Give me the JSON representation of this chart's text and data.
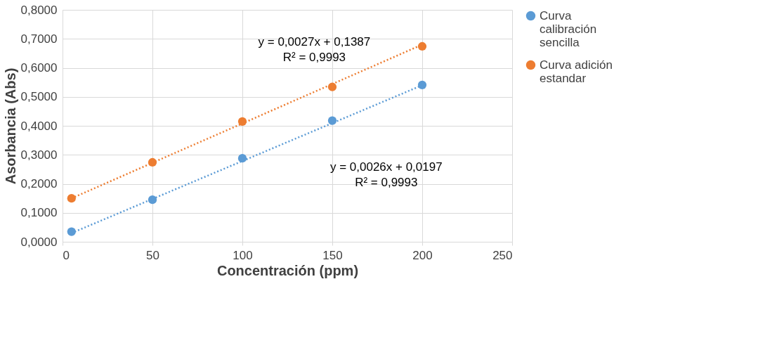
{
  "chart_data": {
    "type": "scatter",
    "xlabel": "Concentración (ppm)",
    "ylabel": "Asorbancia (Abs)",
    "xlim": [
      0,
      250
    ],
    "xticks": [
      0,
      50,
      100,
      150,
      200,
      250
    ],
    "ylim": [
      0,
      0.8
    ],
    "yticks": [
      {
        "value": 0,
        "label": "0,0000"
      },
      {
        "value": 0.1,
        "label": "0,1000"
      },
      {
        "value": 0.2,
        "label": "0,2000"
      },
      {
        "value": 0.3,
        "label": "0,3000"
      },
      {
        "value": 0.4,
        "label": "0,4000"
      },
      {
        "value": 0.5,
        "label": "0,5000"
      },
      {
        "value": 0.6,
        "label": "0,6000"
      },
      {
        "value": 0.7,
        "label": "0,7000"
      },
      {
        "value": 0.8,
        "label": "0,8000"
      }
    ],
    "grid": true,
    "legend": "right",
    "series": [
      {
        "name": "Curva calibración sencilla",
        "color": "#5b9bd5",
        "marker": "circle",
        "x": [
          5,
          50,
          100,
          150,
          200
        ],
        "values": [
          0.035,
          0.145,
          0.288,
          0.418,
          0.541
        ]
      },
      {
        "name": "Curva adición estandar",
        "color": "#ed7d31",
        "marker": "circle",
        "x": [
          5,
          50,
          100,
          150,
          200
        ],
        "values": [
          0.15,
          0.274,
          0.415,
          0.534,
          0.674
        ]
      },
      {
        "type": "line",
        "line_style": "dotted",
        "color": "#5b9bd5",
        "x": [
          5,
          200
        ],
        "values": [
          0.03,
          0.54
        ]
      },
      {
        "type": "line",
        "line_style": "dotted",
        "color": "#ed7d31",
        "x": [
          5,
          200
        ],
        "values": [
          0.15,
          0.68
        ]
      }
    ],
    "annotations": [
      "y = 0,0027x + 0,1387",
      "R² = 0,9993",
      "y = 0,0026x + 0,0197",
      "R² = 0,9993"
    ]
  }
}
